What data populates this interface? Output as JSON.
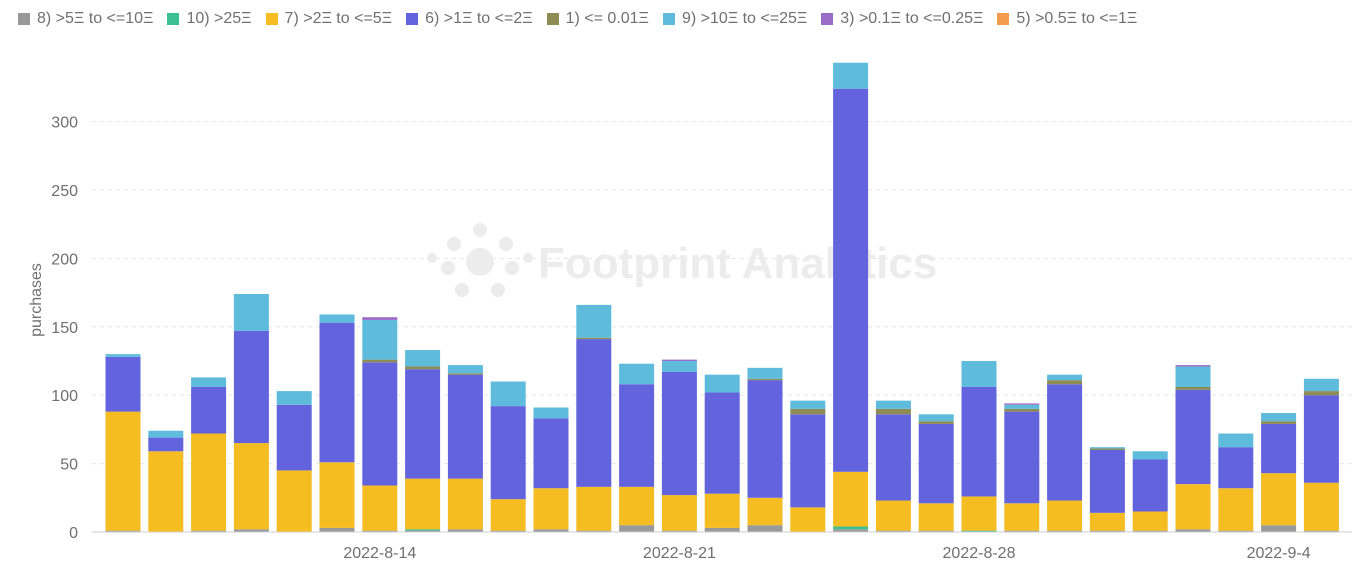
{
  "chart_data": {
    "type": "bar",
    "stacked": true,
    "ylabel": "purchases",
    "xlabel": "",
    "ylim": [
      0,
      345
    ],
    "yticks": [
      0,
      50,
      100,
      150,
      200,
      250,
      300
    ],
    "x_tick_labels": [
      {
        "index": 6,
        "label": "2022-8-14"
      },
      {
        "index": 13,
        "label": "2022-8-21"
      },
      {
        "index": 20,
        "label": "2022-8-28"
      },
      {
        "index": 27,
        "label": "2022-9-4"
      }
    ],
    "grid": true,
    "legend_position": "top",
    "watermark": "Footprint Analytics",
    "categories": [
      "2022-8-8",
      "2022-8-9",
      "2022-8-10",
      "2022-8-11",
      "2022-8-12",
      "2022-8-13",
      "2022-8-14",
      "2022-8-15",
      "2022-8-16",
      "2022-8-17",
      "2022-8-18",
      "2022-8-19",
      "2022-8-20",
      "2022-8-21",
      "2022-8-22",
      "2022-8-23",
      "2022-8-24",
      "2022-8-25",
      "2022-8-26",
      "2022-8-27",
      "2022-8-28",
      "2022-8-29",
      "2022-8-30",
      "2022-8-31",
      "2022-9-1",
      "2022-9-2",
      "2022-9-3",
      "2022-9-4",
      "2022-9-5"
    ],
    "series": [
      {
        "name": "8) >5Ξ to <=10Ξ",
        "color": "#999999",
        "values": [
          1,
          0,
          1,
          2,
          0,
          3,
          1,
          1,
          2,
          1,
          2,
          1,
          5,
          1,
          3,
          5,
          0,
          2,
          1,
          1,
          0,
          1,
          1,
          1,
          1,
          2,
          1,
          5,
          1
        ]
      },
      {
        "name": "10) >25Ξ",
        "color": "#3dbf94",
        "values": [
          0,
          0,
          0,
          0,
          0,
          0,
          0,
          1,
          0,
          0,
          0,
          0,
          0,
          0,
          0,
          0,
          0,
          2,
          0,
          0,
          1,
          0,
          0,
          0,
          0,
          0,
          0,
          0,
          0
        ]
      },
      {
        "name": "7) >2Ξ to <=5Ξ",
        "color": "#f5bd22",
        "values": [
          87,
          59,
          71,
          63,
          45,
          48,
          33,
          37,
          37,
          23,
          30,
          32,
          28,
          26,
          25,
          20,
          18,
          40,
          22,
          20,
          25,
          20,
          22,
          13,
          14,
          33,
          31,
          38,
          35
        ]
      },
      {
        "name": "6) >1Ξ to <=2Ξ",
        "color": "#6363de",
        "values": [
          40,
          10,
          34,
          82,
          48,
          102,
          90,
          80,
          76,
          68,
          51,
          108,
          75,
          90,
          74,
          86,
          68,
          280,
          63,
          58,
          80,
          67,
          85,
          46,
          38,
          69,
          30,
          36,
          64
        ]
      },
      {
        "name": "1) <= 0.01Ξ",
        "color": "#8c8c54",
        "values": [
          0,
          0,
          0,
          0,
          0,
          0,
          2,
          2,
          1,
          0,
          0,
          1,
          0,
          0,
          0,
          1,
          4,
          0,
          4,
          2,
          0,
          2,
          3,
          1,
          0,
          2,
          0,
          2,
          3
        ]
      },
      {
        "name": "9) >10Ξ to <=25Ξ",
        "color": "#5ebbdb",
        "values": [
          2,
          5,
          7,
          27,
          10,
          6,
          29,
          12,
          6,
          18,
          8,
          24,
          15,
          8,
          13,
          8,
          6,
          19,
          6,
          5,
          19,
          3,
          4,
          1,
          6,
          15,
          10,
          6,
          9
        ]
      },
      {
        "name": "3) >0.1Ξ to <=0.25Ξ",
        "color": "#9b6cc7",
        "values": [
          0,
          0,
          0,
          0,
          0,
          0,
          2,
          0,
          0,
          0,
          0,
          0,
          0,
          1,
          0,
          0,
          0,
          0,
          0,
          0,
          0,
          1,
          0,
          0,
          0,
          1,
          0,
          0,
          0
        ]
      },
      {
        "name": "5) >0.5Ξ to <=1Ξ",
        "color": "#f59b50",
        "values": [
          0,
          0,
          0,
          0,
          0,
          0,
          0,
          0,
          0,
          0,
          0,
          0,
          0,
          0,
          0,
          0,
          0,
          0,
          0,
          0,
          0,
          0,
          0,
          0,
          0,
          0,
          0,
          0,
          0
        ]
      }
    ]
  }
}
